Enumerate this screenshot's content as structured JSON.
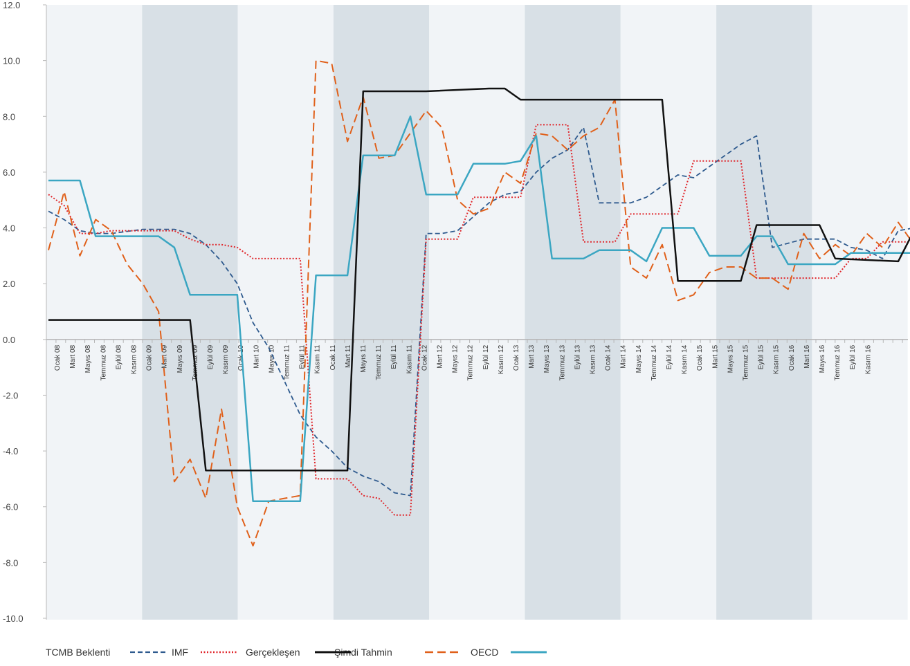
{
  "chart_data": {
    "type": "line",
    "title": "",
    "xlabel": "",
    "ylabel": "",
    "ylim": [
      -10,
      12
    ],
    "yticks": [
      "12.0",
      "10.0",
      "8.0",
      "6.0",
      "4.0",
      "2.0",
      "0.0",
      "-2.0",
      "-4.0",
      "-6.0",
      "-8.0",
      "-10.0"
    ],
    "x_tick_labels": [
      "Ocak 08",
      "Mart 08",
      "Mayıs 08",
      "Temmuz 08",
      "Eylül 08",
      "Kasım 08",
      "Ocak 09",
      "Mart 09",
      "Mayıs 09",
      "Temmuz 09",
      "Eylül 09",
      "Kasım 09",
      "Ocak 10",
      "Mart 10",
      "Mayıs 10",
      "Temmuz 11",
      "Eylül 11",
      "Kasım 11",
      "Ocak 11",
      "Mart 11",
      "Mayıs 11",
      "Temmuz 11",
      "Eylül 11",
      "Kasım 11",
      "Ocak 12",
      "Mart 12",
      "Mayıs 12",
      "Temmuz 12",
      "Eylül 12",
      "Kasım 12",
      "Ocak 13",
      "Mart 13",
      "Mayıs 13",
      "Temmuz 13",
      "Eylül 13",
      "Kasım 13",
      "Ocak 14",
      "Mart 14",
      "Mayıs 14",
      "Temmuz 14",
      "Eylül 14",
      "Kasım 14",
      "Ocak 15",
      "Mart 15",
      "Mayıs 15",
      "Temmuz 15",
      "Eylül 15",
      "Kasım 15",
      "Ocak 16",
      "Mart 16",
      "Mayıs 16",
      "Temmuz 16",
      "Eylül 16",
      "Kasım 16"
    ],
    "grid": false,
    "legend_position": "bottom",
    "legend": [
      {
        "label": "TCMB Beklenti",
        "color": "#2e5a8e",
        "dash": "dashed"
      },
      {
        "label": "IMF",
        "color": "#e0262b",
        "dash": "dotted"
      },
      {
        "label": "Gerçekleşen",
        "color": "#111111",
        "dash": "solid"
      },
      {
        "label": "Şimdi Tahmin",
        "color": "#e0601a",
        "dash": "longdash"
      },
      {
        "label": "OECD",
        "color": "#3ba6c2",
        "dash": "solid"
      }
    ],
    "series": [
      {
        "key": "tcmb",
        "color": "#2e5a8e",
        "dash": "dashed",
        "points": [
          [
            0,
            4.6
          ],
          [
            1,
            4.3
          ],
          [
            2,
            3.9
          ],
          [
            3,
            3.8
          ],
          [
            4,
            3.8
          ],
          [
            6,
            3.95
          ],
          [
            8,
            3.95
          ],
          [
            9,
            3.8
          ],
          [
            10,
            3.4
          ],
          [
            11,
            2.8
          ],
          [
            12,
            2.0
          ],
          [
            13,
            0.6
          ],
          [
            14,
            -0.3
          ],
          [
            15,
            -1.5
          ],
          [
            16,
            -2.7
          ],
          [
            17,
            -3.5
          ],
          [
            18,
            -4.0
          ],
          [
            19,
            -4.6
          ],
          [
            20,
            -4.9
          ],
          [
            21,
            -5.1
          ],
          [
            22,
            -5.5
          ],
          [
            23,
            -5.6
          ],
          [
            24,
            3.8
          ],
          [
            25,
            3.8
          ],
          [
            26,
            3.9
          ],
          [
            27,
            4.4
          ],
          [
            28,
            4.9
          ],
          [
            29,
            5.2
          ],
          [
            30,
            5.3
          ],
          [
            31,
            6.0
          ],
          [
            32,
            6.5
          ],
          [
            33,
            6.8
          ],
          [
            34,
            7.6
          ],
          [
            35,
            4.9
          ],
          [
            37,
            4.9
          ],
          [
            38,
            5.1
          ],
          [
            40,
            5.9
          ],
          [
            41,
            5.8
          ],
          [
            43,
            6.6
          ],
          [
            44,
            7.0
          ],
          [
            45,
            7.3
          ],
          [
            46,
            3.3
          ],
          [
            48,
            3.6
          ],
          [
            50,
            3.6
          ],
          [
            51,
            3.3
          ],
          [
            52,
            3.2
          ],
          [
            53,
            2.9
          ],
          [
            54,
            3.9
          ],
          [
            56,
            4.1
          ],
          [
            57,
            3.9
          ],
          [
            58,
            3.5
          ],
          [
            59,
            3.4
          ],
          [
            60,
            3.6
          ],
          [
            61,
            3.7
          ],
          [
            62,
            3.2
          ],
          [
            63,
            2.7
          ],
          [
            65,
            2.7
          ],
          [
            66,
            3.2
          ],
          [
            67,
            3.2
          ],
          [
            68,
            3.1
          ],
          [
            69,
            3.0
          ],
          [
            70,
            2.9
          ],
          [
            71,
            2.9
          ],
          [
            72,
            3.3
          ],
          [
            73,
            3.3
          ],
          [
            74,
            3.1
          ],
          [
            75,
            3.0
          ],
          [
            76,
            2.8
          ],
          [
            77,
            2.8
          ],
          [
            78,
            2.9
          ],
          [
            79,
            3.3
          ],
          [
            80,
            3.5
          ],
          [
            81,
            3.6
          ],
          [
            82,
            3.6
          ],
          [
            83,
            3.3
          ],
          [
            84,
            3.1
          ],
          [
            85,
            2.7
          ]
        ]
      },
      {
        "key": "imf",
        "color": "#e0262b",
        "dash": "dotted",
        "points": [
          [
            0,
            5.2
          ],
          [
            1,
            4.8
          ],
          [
            2,
            3.8
          ],
          [
            3,
            3.8
          ],
          [
            4,
            3.9
          ],
          [
            8,
            3.9
          ],
          [
            9,
            3.6
          ],
          [
            10,
            3.4
          ],
          [
            11,
            3.4
          ],
          [
            12,
            3.3
          ],
          [
            13,
            2.9
          ],
          [
            15,
            2.9
          ],
          [
            16,
            2.9
          ],
          [
            17,
            -5.0
          ],
          [
            19,
            -5.0
          ],
          [
            20,
            -5.6
          ],
          [
            21,
            -5.7
          ],
          [
            22,
            -6.3
          ],
          [
            23,
            -6.3
          ],
          [
            24,
            3.6
          ],
          [
            26,
            3.6
          ],
          [
            27,
            5.1
          ],
          [
            28,
            5.1
          ],
          [
            30,
            5.1
          ],
          [
            31,
            7.7
          ],
          [
            33,
            7.7
          ],
          [
            34,
            3.5
          ],
          [
            36,
            3.5
          ],
          [
            37,
            4.5
          ],
          [
            40,
            4.5
          ],
          [
            41,
            6.4
          ],
          [
            44,
            6.4
          ],
          [
            45,
            2.2
          ],
          [
            48,
            2.2
          ],
          [
            50,
            2.2
          ],
          [
            51,
            2.9
          ],
          [
            52,
            2.9
          ],
          [
            53,
            3.5
          ],
          [
            55,
            3.5
          ],
          [
            56,
            3.3
          ],
          [
            58,
            3.3
          ],
          [
            59,
            3.8
          ],
          [
            62,
            3.4
          ],
          [
            63,
            2.2
          ],
          [
            66,
            2.2
          ],
          [
            67,
            2.1
          ],
          [
            68,
            3.0
          ],
          [
            72,
            3.0
          ],
          [
            75,
            3.0
          ],
          [
            76,
            2.8
          ],
          [
            78,
            3.1
          ]
        ]
      },
      {
        "key": "actual",
        "color": "#111111",
        "dash": "solid",
        "points": [
          [
            0,
            0.7
          ],
          [
            4,
            0.7
          ],
          [
            8,
            0.7
          ],
          [
            9,
            0.7
          ],
          [
            10,
            -4.7
          ],
          [
            14,
            -4.7
          ],
          [
            18,
            -4.7
          ],
          [
            19,
            -4.7
          ],
          [
            20,
            8.9
          ],
          [
            24,
            8.9
          ],
          [
            28,
            9.0
          ],
          [
            29,
            9.0
          ],
          [
            30,
            8.6
          ],
          [
            34,
            8.6
          ],
          [
            38,
            8.6
          ],
          [
            39,
            8.6
          ],
          [
            40,
            2.1
          ],
          [
            42,
            2.1
          ],
          [
            44,
            2.1
          ],
          [
            45,
            4.1
          ],
          [
            48,
            4.1
          ],
          [
            49,
            4.1
          ],
          [
            50,
            2.9
          ],
          [
            54,
            2.8
          ],
          [
            55,
            3.9
          ],
          [
            59,
            3.9
          ],
          [
            60,
            2.8
          ],
          [
            62,
            2.85
          ],
          [
            66,
            2.85
          ]
        ]
      },
      {
        "key": "nowcast",
        "color": "#e0601a",
        "dash": "longdash",
        "points": [
          [
            0,
            3.2
          ],
          [
            1,
            5.3
          ],
          [
            2,
            3.0
          ],
          [
            3,
            4.3
          ],
          [
            4,
            3.9
          ],
          [
            5,
            2.7
          ],
          [
            6,
            2.0
          ],
          [
            7,
            1.0
          ],
          [
            8,
            -5.1
          ],
          [
            9,
            -4.3
          ],
          [
            10,
            -5.7
          ],
          [
            11,
            -2.5
          ],
          [
            12,
            -6.0
          ],
          [
            13,
            -7.4
          ],
          [
            14,
            -5.8
          ],
          [
            15,
            -5.7
          ],
          [
            16,
            -5.6
          ],
          [
            17,
            10.0
          ],
          [
            18,
            9.9
          ],
          [
            19,
            7.1
          ],
          [
            20,
            8.7
          ],
          [
            21,
            6.5
          ],
          [
            22,
            6.6
          ],
          [
            23,
            7.4
          ],
          [
            24,
            8.2
          ],
          [
            25,
            7.6
          ],
          [
            26,
            5.0
          ],
          [
            27,
            4.5
          ],
          [
            28,
            4.7
          ],
          [
            29,
            6.0
          ],
          [
            30,
            5.6
          ],
          [
            31,
            7.4
          ],
          [
            32,
            7.3
          ],
          [
            33,
            6.8
          ],
          [
            34,
            7.3
          ],
          [
            35,
            7.6
          ],
          [
            36,
            8.6
          ],
          [
            37,
            2.6
          ],
          [
            38,
            2.2
          ],
          [
            39,
            3.4
          ],
          [
            40,
            1.4
          ],
          [
            41,
            1.6
          ],
          [
            42,
            2.4
          ],
          [
            43,
            2.6
          ],
          [
            44,
            2.6
          ],
          [
            45,
            2.2
          ],
          [
            46,
            2.2
          ],
          [
            47,
            1.8
          ],
          [
            48,
            3.8
          ],
          [
            49,
            2.9
          ],
          [
            50,
            3.4
          ],
          [
            51,
            3.0
          ],
          [
            52,
            3.8
          ],
          [
            53,
            3.3
          ],
          [
            54,
            4.2
          ],
          [
            55,
            3.4
          ],
          [
            56,
            3.7
          ],
          [
            57,
            3.1
          ],
          [
            58,
            2.2
          ],
          [
            59,
            2.1
          ],
          [
            60,
            3.5
          ],
          [
            61,
            2.5
          ],
          [
            62,
            2.7
          ],
          [
            63,
            3.1
          ],
          [
            64,
            2.1
          ],
          [
            65,
            3.0
          ],
          [
            66,
            2.7
          ],
          [
            67,
            2.9
          ],
          [
            68,
            4.9
          ],
          [
            69,
            3.1
          ],
          [
            70,
            3.2
          ],
          [
            71,
            2.1
          ],
          [
            72,
            2.2
          ],
          [
            73,
            3.4
          ],
          [
            74,
            2.8
          ],
          [
            75,
            3.5
          ],
          [
            76,
            3.4
          ],
          [
            77,
            4.1
          ],
          [
            78,
            4.4
          ],
          [
            79,
            3.9
          ],
          [
            80,
            2.6
          ],
          [
            81,
            3.2
          ],
          [
            82,
            2.2
          ],
          [
            83,
            2.2
          ]
        ]
      },
      {
        "key": "oecd",
        "color": "#3ba6c2",
        "dash": "solid",
        "points": [
          [
            0,
            5.7
          ],
          [
            2,
            5.7
          ],
          [
            3,
            3.7
          ],
          [
            5,
            3.7
          ],
          [
            7,
            3.7
          ],
          [
            8,
            3.3
          ],
          [
            9,
            1.6
          ],
          [
            11,
            1.6
          ],
          [
            12,
            1.6
          ],
          [
            13,
            -5.8
          ],
          [
            15,
            -5.8
          ],
          [
            16,
            -5.8
          ],
          [
            17,
            2.3
          ],
          [
            19,
            2.3
          ],
          [
            20,
            6.6
          ],
          [
            21,
            6.6
          ],
          [
            22,
            6.6
          ],
          [
            23,
            8.0
          ],
          [
            24,
            5.2
          ],
          [
            25,
            5.2
          ],
          [
            26,
            5.2
          ],
          [
            27,
            6.3
          ],
          [
            29,
            6.3
          ],
          [
            30,
            6.4
          ],
          [
            31,
            7.3
          ],
          [
            32,
            2.9
          ],
          [
            34,
            2.9
          ],
          [
            35,
            3.2
          ],
          [
            37,
            3.2
          ],
          [
            38,
            2.8
          ],
          [
            39,
            4.0
          ],
          [
            41,
            4.0
          ],
          [
            42,
            3.0
          ],
          [
            43,
            3.0
          ],
          [
            44,
            3.0
          ],
          [
            45,
            3.7
          ],
          [
            46,
            3.7
          ],
          [
            47,
            2.7
          ],
          [
            49,
            2.7
          ],
          [
            50,
            2.7
          ],
          [
            51,
            3.1
          ],
          [
            53,
            3.1
          ],
          [
            55,
            3.1
          ],
          [
            56,
            3.2
          ],
          [
            57,
            3.2
          ],
          [
            58,
            3.2
          ],
          [
            59,
            3.8
          ],
          [
            60,
            3.8
          ],
          [
            61,
            2.9
          ]
        ]
      }
    ]
  }
}
